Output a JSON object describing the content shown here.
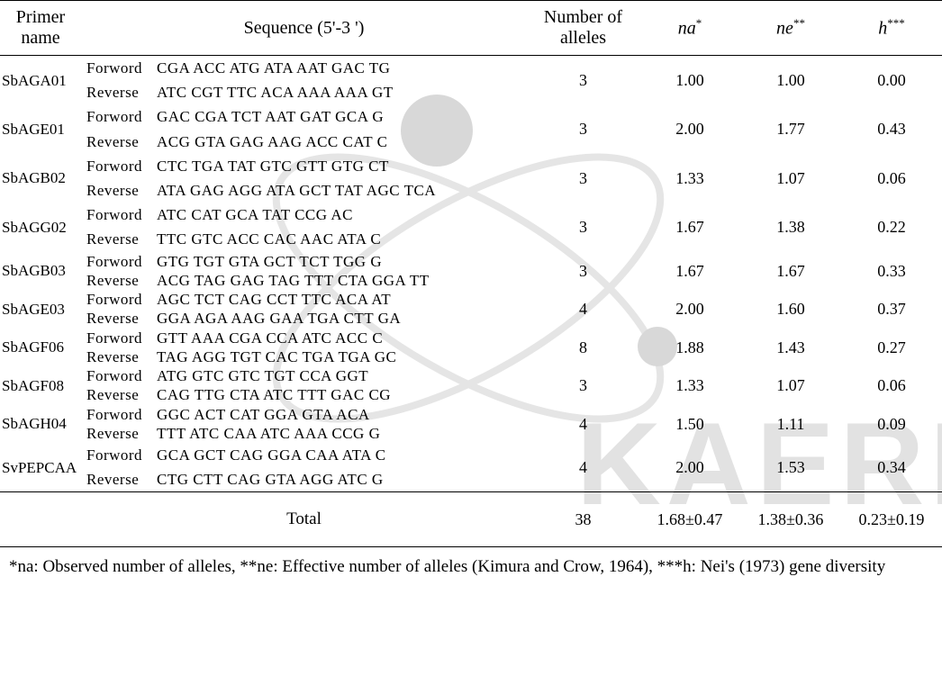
{
  "header": {
    "primer": "Primer name",
    "sequence": "Sequence (5'-3 ')",
    "numAlleles": "Number of alleles",
    "na": "na",
    "na_sup": "*",
    "ne": "ne",
    "ne_sup": "**",
    "h": "h",
    "h_sup": "***"
  },
  "rows": [
    {
      "name": "SbAGA01",
      "fwd": "CGA ACC ATG ATA AAT GAC TG",
      "rev": "ATC CGT TTC ACA AAA AAA GT",
      "num": "3",
      "na": "1.00",
      "ne": "1.00",
      "h": "0.00",
      "tight": false
    },
    {
      "name": "SbAGE01",
      "fwd": "GAC CGA TCT AAT GAT GCA G",
      "rev": "ACG GTA GAG AAG ACC CAT C",
      "num": "3",
      "na": "2.00",
      "ne": "1.77",
      "h": "0.43",
      "tight": false
    },
    {
      "name": "SbAGB02",
      "fwd": "CTC TGA TAT GTC GTT GTG CT",
      "rev": "ATA GAG AGG ATA GCT TAT AGC TCA",
      "num": "3",
      "na": "1.33",
      "ne": "1.07",
      "h": "0.06",
      "tight": false
    },
    {
      "name": "SbAGG02",
      "fwd": "ATC CAT GCA TAT CCG AC",
      "rev": "TTC GTC ACC CAC AAC ATA C",
      "num": "3",
      "na": "1.67",
      "ne": "1.38",
      "h": "0.22",
      "tight": false
    },
    {
      "name": "SbAGB03",
      "fwd": "GTG TGT GTA GCT  TCT TGG G",
      "rev": "ACG TAG GAG TAG TTT CTA GGA TT",
      "num": "3",
      "na": "1.67",
      "ne": "1.67",
      "h": "0.33",
      "tight": true
    },
    {
      "name": "SbAGE03",
      "fwd": "AGC TCT CAG CCT TTC ACA AT",
      "rev": "GGA AGA AAG GAA TGA CTT GA",
      "num": "4",
      "na": "2.00",
      "ne": "1.60",
      "h": "0.37",
      "tight": true
    },
    {
      "name": "SbAGF06",
      "fwd": "GTT AAA CGA CCA ATC ACC C",
      "rev": "TAG AGG TGT CAC TGA TGA GC",
      "num": "8",
      "na": "1.88",
      "ne": "1.43",
      "h": "0.27",
      "tight": true
    },
    {
      "name": "SbAGF08",
      "fwd": "ATG GTC GTC TGT CCA GGT",
      "rev": "CAG TTG CTA ATC TTT GAC CG",
      "num": "3",
      "na": "1.33",
      "ne": "1.07",
      "h": "0.06",
      "tight": true
    },
    {
      "name": "SbAGH04",
      "fwd": "GGC ACT CAT GGA GTA ACA",
      "rev": "TTT ATC CAA ATC AAA CCG G",
      "num": "4",
      "na": "1.50",
      "ne": "1.11",
      "h": "0.09",
      "tight": true
    },
    {
      "name": "SvPEPCAA",
      "fwd": "GCA GCT CAG GGA CAA ATA C",
      "rev": "CTG CTT CAG GTA AGG ATC G",
      "num": "4",
      "na": "2.00",
      "ne": "1.53",
      "h": "0.34",
      "tight": false
    }
  ],
  "total": {
    "label": "Total",
    "num": "38",
    "na": "1.68±0.47",
    "ne": "1.38±0.36",
    "h": "0.23±0.19"
  },
  "footnote": "*na: Observed number of alleles, **ne: Effective number of alleles (Kimura and Crow, 1964),  ***h: Nei's (1973) gene diversity",
  "watermark": {
    "ring_color": "#e5e5e5",
    "node_color": "#d8d8d8",
    "text_color": "#e2e2e2",
    "text": "KAERI"
  }
}
